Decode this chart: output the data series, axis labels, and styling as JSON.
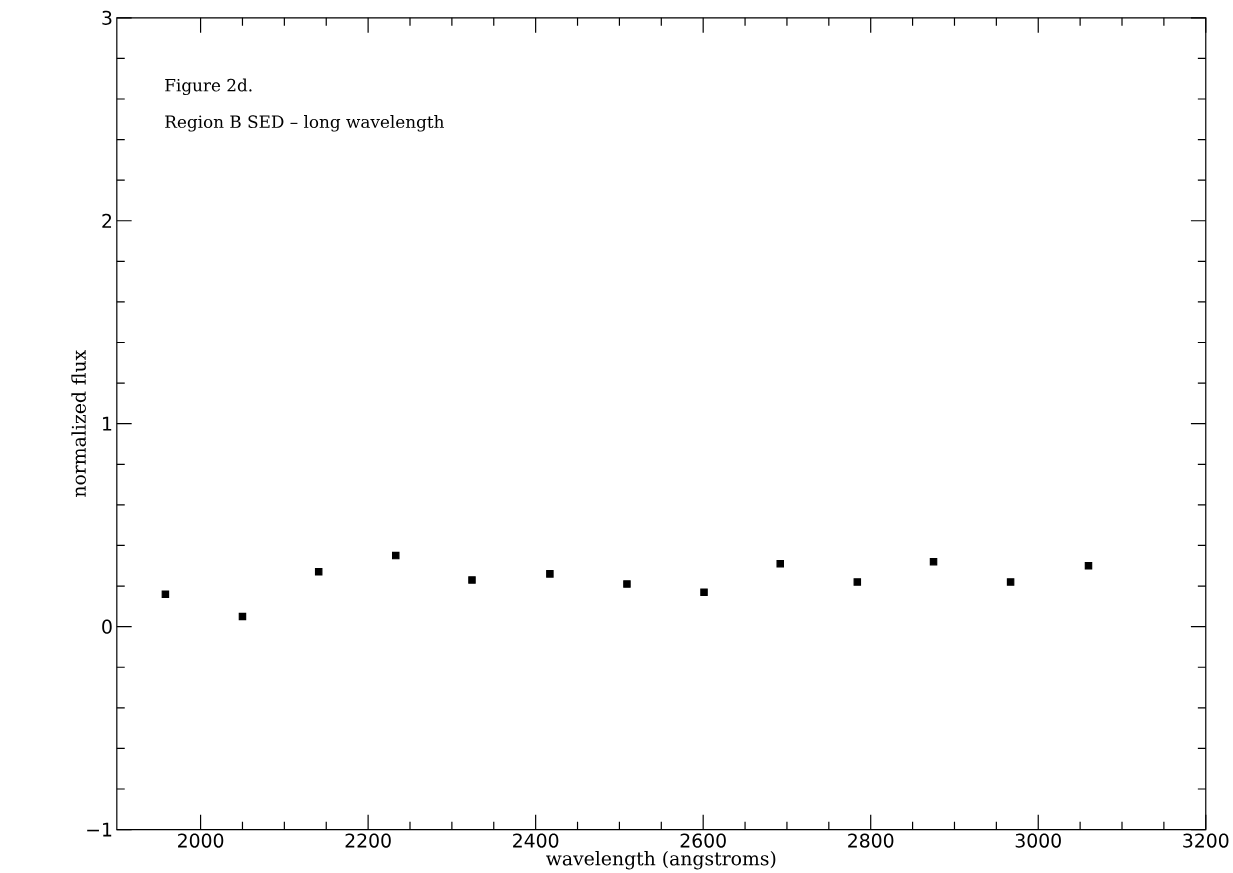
{
  "chart_data": {
    "type": "scatter",
    "xlabel": "wavelength (angstroms)",
    "ylabel": "normalized flux",
    "annotations": [
      "Figure 2d.",
      "Region B SED – long wavelength"
    ],
    "x": [
      1958,
      2050,
      2141,
      2233,
      2324,
      2417,
      2509,
      2601,
      2692,
      2784,
      2875,
      2967,
      3060
    ],
    "series": [
      {
        "color": "#000000",
        "values": [
          0.16,
          0.05,
          0.27,
          0.35,
          0.23,
          0.26,
          0.21,
          0.17,
          0.31,
          0.22,
          0.32,
          0.22,
          0.3
        ]
      }
    ],
    "marker": "square",
    "xlim": [
      1900,
      3200
    ],
    "ylim": [
      -1,
      3
    ],
    "xticks": [
      2000,
      2200,
      2400,
      2600,
      2800,
      3000,
      3200
    ],
    "yticks": [
      {
        "value": -1,
        "label": "−1"
      },
      0,
      1,
      2,
      3
    ],
    "grid": false,
    "legend": false
  }
}
